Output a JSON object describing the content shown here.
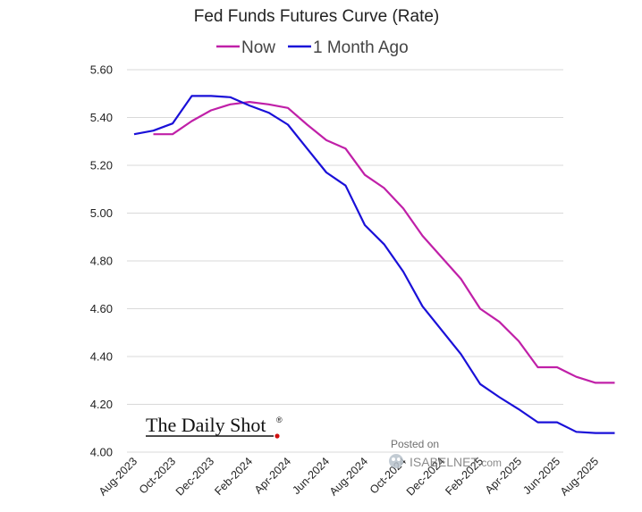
{
  "chart_data": {
    "type": "line",
    "title": "Fed Funds Futures Curve (Rate)",
    "x": [
      "Aug-2023",
      "Sep-2023",
      "Oct-2023",
      "Nov-2023",
      "Dec-2023",
      "Jan-2024",
      "Feb-2024",
      "Mar-2024",
      "Apr-2024",
      "May-2024",
      "Jun-2024",
      "Jul-2024",
      "Aug-2024",
      "Sep-2024",
      "Oct-2024",
      "Nov-2024",
      "Dec-2024",
      "Jan-2025",
      "Feb-2025",
      "Mar-2025",
      "Apr-2025",
      "May-2025",
      "Jun-2025",
      "Jul-2025",
      "Aug-2025",
      "Sep-2025"
    ],
    "x_tick_labels": [
      "Aug-2023",
      "Oct-2023",
      "Dec-2023",
      "Feb-2024",
      "Apr-2024",
      "Jun-2024",
      "Aug-2024",
      "Oct-2024",
      "Dec-2024",
      "Feb-2025",
      "Apr-2025",
      "Jun-2025",
      "Aug-2025"
    ],
    "ylim": [
      4.0,
      5.6
    ],
    "y_ticks": [
      "4.00",
      "4.20",
      "4.40",
      "4.60",
      "4.80",
      "5.00",
      "5.20",
      "5.40",
      "5.60"
    ],
    "grid": true,
    "legend_position": "top-center",
    "series": [
      {
        "name": "Now",
        "color": "#c020a8",
        "values": [
          null,
          5.33,
          5.33,
          5.385,
          5.43,
          5.455,
          5.465,
          5.455,
          5.44,
          5.37,
          5.305,
          5.27,
          5.16,
          5.105,
          5.02,
          4.905,
          4.815,
          4.725,
          4.6,
          4.545,
          4.465,
          4.355,
          4.355,
          4.315,
          4.29,
          4.29
        ]
      },
      {
        "name": "1 Month Ago",
        "color": "#1a10d8",
        "values": [
          5.33,
          5.345,
          5.375,
          5.49,
          5.49,
          5.485,
          5.45,
          5.42,
          5.37,
          5.27,
          5.17,
          5.115,
          4.95,
          4.87,
          4.755,
          4.61,
          4.51,
          4.41,
          4.285,
          4.23,
          4.18,
          4.125,
          4.125,
          4.085,
          4.08,
          4.08
        ]
      }
    ]
  },
  "branding": {
    "source_logo": "The Daily Shot",
    "registered_mark": "®",
    "posted_on": "Posted on",
    "isabel_brand": "ISABELNET",
    "isabel_suffix": ".com",
    "isabel_icon": "owl-icon"
  }
}
